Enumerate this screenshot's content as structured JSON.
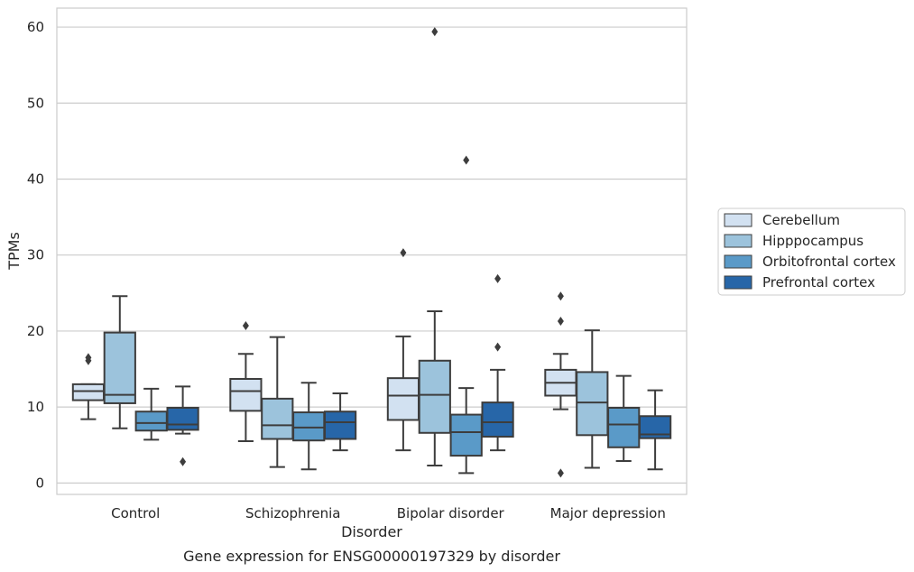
{
  "chart_data": {
    "type": "box",
    "xlabel": "Disorder",
    "ylabel": "TPMs",
    "caption": "Gene expression for ENSG00000197329 by disorder",
    "ylim": [
      -1.5,
      62.5
    ],
    "yticks": [
      0,
      10,
      20,
      30,
      40,
      50,
      60
    ],
    "grid": "horizontal",
    "legend_position": "right",
    "categories": [
      "Control",
      "Schizophrenia",
      "Bipolar disorder",
      "Major depression"
    ],
    "series": [
      {
        "name": "Cerebellum",
        "color": "#d2e1f1",
        "boxes": [
          {
            "whisker_low": 8.4,
            "q1": 10.9,
            "median": 12.1,
            "q3": 13.0,
            "whisker_high": 13.0,
            "outliers": [
              16.1,
              16.5
            ]
          },
          {
            "whisker_low": 5.5,
            "q1": 9.5,
            "median": 12.1,
            "q3": 13.7,
            "whisker_high": 17.0,
            "outliers": [
              20.7
            ]
          },
          {
            "whisker_low": 4.3,
            "q1": 8.3,
            "median": 11.5,
            "q3": 13.8,
            "whisker_high": 19.3,
            "outliers": [
              30.3
            ]
          },
          {
            "whisker_low": 9.7,
            "q1": 11.5,
            "median": 13.2,
            "q3": 14.9,
            "whisker_high": 17.0,
            "outliers": [
              21.3,
              24.6,
              1.3
            ]
          }
        ]
      },
      {
        "name": "Hipppocampus",
        "color": "#9cc3dc",
        "boxes": [
          {
            "whisker_low": 7.2,
            "q1": 10.5,
            "median": 11.6,
            "q3": 19.8,
            "whisker_high": 24.6,
            "outliers": []
          },
          {
            "whisker_low": 2.1,
            "q1": 5.8,
            "median": 7.6,
            "q3": 11.1,
            "whisker_high": 19.2,
            "outliers": []
          },
          {
            "whisker_low": 2.3,
            "q1": 6.6,
            "median": 11.6,
            "q3": 16.1,
            "whisker_high": 22.6,
            "outliers": [
              59.4
            ]
          },
          {
            "whisker_low": 2.0,
            "q1": 6.3,
            "median": 10.6,
            "q3": 14.6,
            "whisker_high": 20.1,
            "outliers": []
          }
        ]
      },
      {
        "name": "Orbitofrontal cortex",
        "color": "#5a9ac8",
        "boxes": [
          {
            "whisker_low": 5.7,
            "q1": 6.9,
            "median": 7.9,
            "q3": 9.4,
            "whisker_high": 12.4,
            "outliers": []
          },
          {
            "whisker_low": 1.8,
            "q1": 5.6,
            "median": 7.3,
            "q3": 9.3,
            "whisker_high": 13.2,
            "outliers": []
          },
          {
            "whisker_low": 1.3,
            "q1": 3.6,
            "median": 6.7,
            "q3": 9.0,
            "whisker_high": 12.5,
            "outliers": [
              42.5
            ]
          },
          {
            "whisker_low": 2.9,
            "q1": 4.7,
            "median": 7.7,
            "q3": 9.9,
            "whisker_high": 14.1,
            "outliers": []
          }
        ]
      },
      {
        "name": "Prefrontal cortex",
        "color": "#2766a8",
        "boxes": [
          {
            "whisker_low": 6.5,
            "q1": 7.0,
            "median": 7.7,
            "q3": 9.9,
            "whisker_high": 12.7,
            "outliers": [
              2.8
            ]
          },
          {
            "whisker_low": 4.3,
            "q1": 5.8,
            "median": 8.0,
            "q3": 9.4,
            "whisker_high": 11.8,
            "outliers": []
          },
          {
            "whisker_low": 4.3,
            "q1": 6.1,
            "median": 8.0,
            "q3": 10.6,
            "whisker_high": 14.9,
            "outliers": [
              17.9,
              26.9
            ]
          },
          {
            "whisker_low": 1.8,
            "q1": 5.9,
            "median": 6.4,
            "q3": 8.8,
            "whisker_high": 12.2,
            "outliers": []
          }
        ]
      }
    ]
  }
}
